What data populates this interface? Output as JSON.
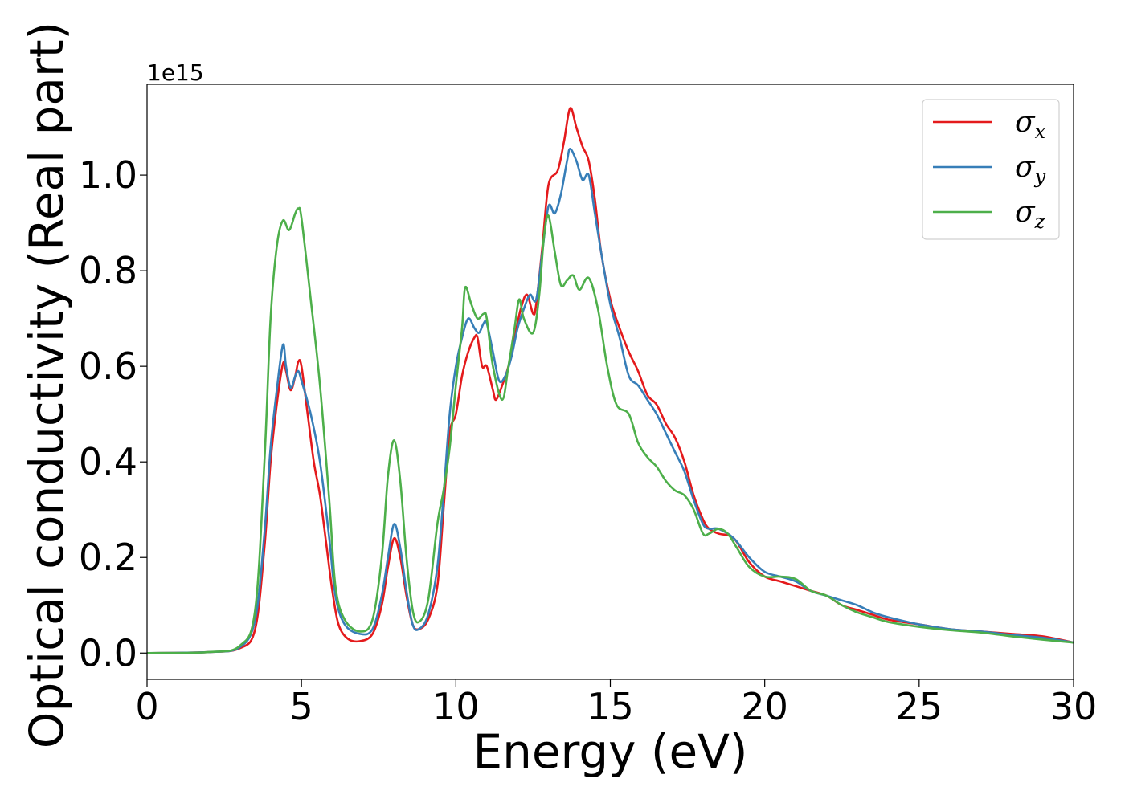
{
  "chart_data": {
    "type": "line",
    "title": "",
    "xlabel": "Energy (eV)",
    "ylabel": "Optical conductivity (Real part)",
    "y_offset_label": "1e15",
    "xlim": [
      0,
      30
    ],
    "ylim": [
      -0.055,
      1.19
    ],
    "x_ticks": [
      0,
      5,
      10,
      15,
      20,
      25,
      30
    ],
    "x_tick_labels": [
      "0",
      "5",
      "10",
      "15",
      "20",
      "25",
      "30"
    ],
    "y_ticks": [
      0.0,
      0.2,
      0.4,
      0.6,
      0.8,
      1.0
    ],
    "y_tick_labels": [
      "0.0",
      "0.2",
      "0.4",
      "0.6",
      "0.8",
      "1.0"
    ],
    "grid": false,
    "legend_position": "top-right",
    "series": [
      {
        "name": "σx",
        "legend_symbol": "σ",
        "legend_sub": "x",
        "color": "#e41a1c",
        "points": [
          [
            0,
            0
          ],
          [
            2,
            0.002
          ],
          [
            3,
            0.01
          ],
          [
            3.5,
            0.05
          ],
          [
            3.8,
            0.22
          ],
          [
            4.0,
            0.4
          ],
          [
            4.2,
            0.52
          ],
          [
            4.4,
            0.605
          ],
          [
            4.5,
            0.59
          ],
          [
            4.65,
            0.55
          ],
          [
            4.8,
            0.58
          ],
          [
            4.9,
            0.61
          ],
          [
            5.0,
            0.6
          ],
          [
            5.2,
            0.5
          ],
          [
            5.4,
            0.4
          ],
          [
            5.6,
            0.33
          ],
          [
            5.8,
            0.23
          ],
          [
            6.0,
            0.13
          ],
          [
            6.2,
            0.06
          ],
          [
            6.5,
            0.03
          ],
          [
            6.9,
            0.025
          ],
          [
            7.3,
            0.04
          ],
          [
            7.6,
            0.1
          ],
          [
            7.8,
            0.18
          ],
          [
            8.0,
            0.24
          ],
          [
            8.2,
            0.2
          ],
          [
            8.4,
            0.12
          ],
          [
            8.6,
            0.06
          ],
          [
            8.8,
            0.05
          ],
          [
            9.1,
            0.07
          ],
          [
            9.4,
            0.14
          ],
          [
            9.6,
            0.3
          ],
          [
            9.8,
            0.46
          ],
          [
            10.0,
            0.5
          ],
          [
            10.2,
            0.58
          ],
          [
            10.4,
            0.63
          ],
          [
            10.6,
            0.66
          ],
          [
            10.7,
            0.66
          ],
          [
            10.85,
            0.6
          ],
          [
            11.0,
            0.6
          ],
          [
            11.2,
            0.55
          ],
          [
            11.3,
            0.53
          ],
          [
            11.5,
            0.56
          ],
          [
            11.7,
            0.6
          ],
          [
            11.9,
            0.66
          ],
          [
            12.1,
            0.72
          ],
          [
            12.3,
            0.75
          ],
          [
            12.5,
            0.71
          ],
          [
            12.6,
            0.73
          ],
          [
            12.8,
            0.85
          ],
          [
            13.0,
            0.98
          ],
          [
            13.3,
            1.01
          ],
          [
            13.5,
            1.07
          ],
          [
            13.7,
            1.14
          ],
          [
            13.9,
            1.1
          ],
          [
            14.1,
            1.06
          ],
          [
            14.3,
            1.03
          ],
          [
            14.5,
            0.95
          ],
          [
            14.7,
            0.84
          ],
          [
            15.0,
            0.74
          ],
          [
            15.3,
            0.68
          ],
          [
            15.6,
            0.63
          ],
          [
            15.9,
            0.59
          ],
          [
            16.2,
            0.54
          ],
          [
            16.5,
            0.52
          ],
          [
            16.8,
            0.48
          ],
          [
            17.1,
            0.45
          ],
          [
            17.4,
            0.4
          ],
          [
            17.7,
            0.33
          ],
          [
            18.0,
            0.28
          ],
          [
            18.2,
            0.26
          ],
          [
            18.5,
            0.25
          ],
          [
            19.0,
            0.24
          ],
          [
            19.5,
            0.19
          ],
          [
            20.0,
            0.16
          ],
          [
            20.5,
            0.15
          ],
          [
            21.0,
            0.14
          ],
          [
            21.5,
            0.13
          ],
          [
            22.0,
            0.12
          ],
          [
            22.5,
            0.1
          ],
          [
            23.0,
            0.09
          ],
          [
            23.5,
            0.08
          ],
          [
            24.0,
            0.07
          ],
          [
            25.0,
            0.06
          ],
          [
            26.0,
            0.05
          ],
          [
            27.0,
            0.045
          ],
          [
            28.0,
            0.04
          ],
          [
            29.0,
            0.035
          ],
          [
            30.0,
            0.022
          ]
        ]
      },
      {
        "name": "σy",
        "legend_symbol": "σ",
        "legend_sub": "y",
        "color": "#377eb8",
        "points": [
          [
            0,
            0
          ],
          [
            2,
            0.002
          ],
          [
            3,
            0.012
          ],
          [
            3.5,
            0.07
          ],
          [
            3.8,
            0.25
          ],
          [
            4.0,
            0.43
          ],
          [
            4.2,
            0.55
          ],
          [
            4.4,
            0.645
          ],
          [
            4.5,
            0.6
          ],
          [
            4.65,
            0.555
          ],
          [
            4.8,
            0.58
          ],
          [
            4.9,
            0.59
          ],
          [
            5.0,
            0.57
          ],
          [
            5.3,
            0.5
          ],
          [
            5.6,
            0.4
          ],
          [
            5.9,
            0.24
          ],
          [
            6.1,
            0.12
          ],
          [
            6.4,
            0.06
          ],
          [
            6.9,
            0.04
          ],
          [
            7.3,
            0.05
          ],
          [
            7.6,
            0.12
          ],
          [
            7.8,
            0.2
          ],
          [
            8.0,
            0.27
          ],
          [
            8.2,
            0.22
          ],
          [
            8.4,
            0.13
          ],
          [
            8.6,
            0.06
          ],
          [
            8.8,
            0.05
          ],
          [
            9.1,
            0.08
          ],
          [
            9.4,
            0.18
          ],
          [
            9.6,
            0.33
          ],
          [
            9.8,
            0.5
          ],
          [
            10.0,
            0.6
          ],
          [
            10.2,
            0.66
          ],
          [
            10.4,
            0.7
          ],
          [
            10.6,
            0.68
          ],
          [
            10.75,
            0.67
          ],
          [
            10.9,
            0.69
          ],
          [
            11.0,
            0.69
          ],
          [
            11.2,
            0.63
          ],
          [
            11.4,
            0.57
          ],
          [
            11.6,
            0.58
          ],
          [
            11.8,
            0.62
          ],
          [
            12.0,
            0.68
          ],
          [
            12.2,
            0.72
          ],
          [
            12.4,
            0.75
          ],
          [
            12.6,
            0.74
          ],
          [
            12.8,
            0.84
          ],
          [
            13.0,
            0.935
          ],
          [
            13.2,
            0.92
          ],
          [
            13.4,
            0.96
          ],
          [
            13.6,
            1.03
          ],
          [
            13.7,
            1.055
          ],
          [
            13.9,
            1.03
          ],
          [
            14.1,
            0.99
          ],
          [
            14.3,
            1.0
          ],
          [
            14.5,
            0.92
          ],
          [
            14.7,
            0.84
          ],
          [
            15.0,
            0.73
          ],
          [
            15.3,
            0.66
          ],
          [
            15.6,
            0.58
          ],
          [
            15.9,
            0.56
          ],
          [
            16.2,
            0.53
          ],
          [
            16.5,
            0.5
          ],
          [
            16.8,
            0.46
          ],
          [
            17.1,
            0.42
          ],
          [
            17.4,
            0.38
          ],
          [
            17.7,
            0.32
          ],
          [
            18.0,
            0.27
          ],
          [
            18.2,
            0.26
          ],
          [
            18.5,
            0.26
          ],
          [
            19.0,
            0.24
          ],
          [
            19.5,
            0.2
          ],
          [
            20.0,
            0.17
          ],
          [
            20.5,
            0.16
          ],
          [
            21.0,
            0.15
          ],
          [
            21.5,
            0.13
          ],
          [
            22.0,
            0.12
          ],
          [
            22.5,
            0.11
          ],
          [
            23.0,
            0.1
          ],
          [
            23.5,
            0.085
          ],
          [
            24.0,
            0.075
          ],
          [
            25.0,
            0.06
          ],
          [
            26.0,
            0.05
          ],
          [
            27.0,
            0.045
          ],
          [
            28.0,
            0.038
          ],
          [
            29.0,
            0.032
          ],
          [
            30.0,
            0.022
          ]
        ]
      },
      {
        "name": "σz",
        "legend_symbol": "σ",
        "legend_sub": "z",
        "color": "#4daf4a",
        "points": [
          [
            0,
            0
          ],
          [
            2,
            0.002
          ],
          [
            3,
            0.015
          ],
          [
            3.5,
            0.09
          ],
          [
            3.8,
            0.4
          ],
          [
            4.0,
            0.7
          ],
          [
            4.2,
            0.85
          ],
          [
            4.4,
            0.905
          ],
          [
            4.6,
            0.885
          ],
          [
            4.8,
            0.92
          ],
          [
            4.9,
            0.93
          ],
          [
            5.0,
            0.91
          ],
          [
            5.3,
            0.74
          ],
          [
            5.6,
            0.56
          ],
          [
            5.9,
            0.32
          ],
          [
            6.1,
            0.14
          ],
          [
            6.4,
            0.07
          ],
          [
            6.9,
            0.045
          ],
          [
            7.3,
            0.07
          ],
          [
            7.6,
            0.2
          ],
          [
            7.8,
            0.37
          ],
          [
            8.0,
            0.445
          ],
          [
            8.2,
            0.36
          ],
          [
            8.4,
            0.2
          ],
          [
            8.6,
            0.09
          ],
          [
            8.8,
            0.065
          ],
          [
            9.1,
            0.11
          ],
          [
            9.4,
            0.27
          ],
          [
            9.6,
            0.34
          ],
          [
            9.8,
            0.43
          ],
          [
            10.0,
            0.56
          ],
          [
            10.2,
            0.68
          ],
          [
            10.3,
            0.765
          ],
          [
            10.5,
            0.73
          ],
          [
            10.7,
            0.7
          ],
          [
            10.9,
            0.71
          ],
          [
            11.0,
            0.7
          ],
          [
            11.2,
            0.6
          ],
          [
            11.5,
            0.53
          ],
          [
            11.7,
            0.6
          ],
          [
            11.9,
            0.68
          ],
          [
            12.05,
            0.74
          ],
          [
            12.2,
            0.7
          ],
          [
            12.5,
            0.67
          ],
          [
            12.7,
            0.75
          ],
          [
            12.85,
            0.87
          ],
          [
            13.0,
            0.915
          ],
          [
            13.2,
            0.84
          ],
          [
            13.4,
            0.77
          ],
          [
            13.6,
            0.78
          ],
          [
            13.8,
            0.79
          ],
          [
            14.0,
            0.76
          ],
          [
            14.3,
            0.785
          ],
          [
            14.6,
            0.72
          ],
          [
            14.9,
            0.6
          ],
          [
            15.2,
            0.52
          ],
          [
            15.6,
            0.5
          ],
          [
            15.9,
            0.44
          ],
          [
            16.2,
            0.41
          ],
          [
            16.5,
            0.39
          ],
          [
            16.8,
            0.36
          ],
          [
            17.1,
            0.34
          ],
          [
            17.4,
            0.33
          ],
          [
            17.7,
            0.3
          ],
          [
            18.0,
            0.25
          ],
          [
            18.2,
            0.25
          ],
          [
            18.5,
            0.26
          ],
          [
            18.8,
            0.25
          ],
          [
            19.1,
            0.22
          ],
          [
            19.5,
            0.18
          ],
          [
            20.0,
            0.16
          ],
          [
            20.5,
            0.16
          ],
          [
            21.0,
            0.155
          ],
          [
            21.5,
            0.13
          ],
          [
            22.0,
            0.12
          ],
          [
            22.5,
            0.1
          ],
          [
            23.0,
            0.085
          ],
          [
            23.5,
            0.075
          ],
          [
            24.0,
            0.065
          ],
          [
            25.0,
            0.055
          ],
          [
            26.0,
            0.048
          ],
          [
            27.0,
            0.043
          ],
          [
            28.0,
            0.035
          ],
          [
            29.0,
            0.028
          ],
          [
            30.0,
            0.022
          ]
        ]
      }
    ]
  }
}
